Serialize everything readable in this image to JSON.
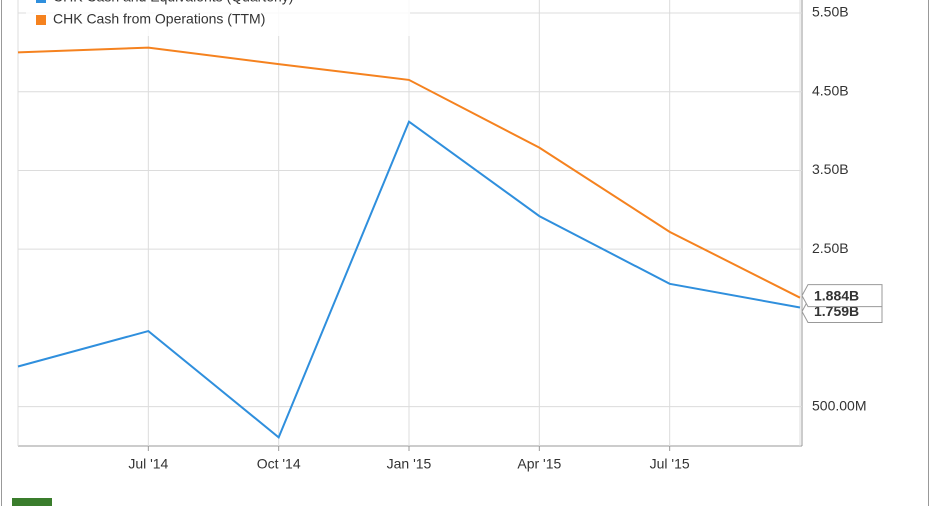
{
  "chart_data": {
    "type": "line",
    "categories": [
      null,
      "Jul '14",
      "Oct '14",
      "Jan '15",
      "Apr '15",
      "Jul '15",
      null
    ],
    "series": [
      {
        "name": "CHK Cash and Equivalents (Quarterly)",
        "color": "#2f8fdd",
        "values": [
          1.01,
          1.46,
          0.11,
          4.12,
          2.92,
          2.06,
          1.759
        ],
        "value_labels": [
          null,
          null,
          null,
          null,
          null,
          null,
          "1.759B"
        ]
      },
      {
        "name": "CHK Cash from Operations (TTM)",
        "color": "#f5821f",
        "values": [
          5.0,
          5.06,
          4.85,
          4.65,
          3.79,
          2.72,
          1.884
        ],
        "value_labels": [
          null,
          null,
          null,
          null,
          null,
          null,
          "1.884B"
        ]
      }
    ],
    "ylim": [
      0,
      5.665
    ],
    "yticks": [
      {
        "value": 0.5,
        "label": "500.00M"
      },
      {
        "value": 2.5,
        "label": "2.50B"
      },
      {
        "value": 3.5,
        "label": "3.50B"
      },
      {
        "value": 4.5,
        "label": "4.50B"
      },
      {
        "value": 5.5,
        "label": "5.50B"
      }
    ],
    "grid": true,
    "legend": "top-left"
  }
}
